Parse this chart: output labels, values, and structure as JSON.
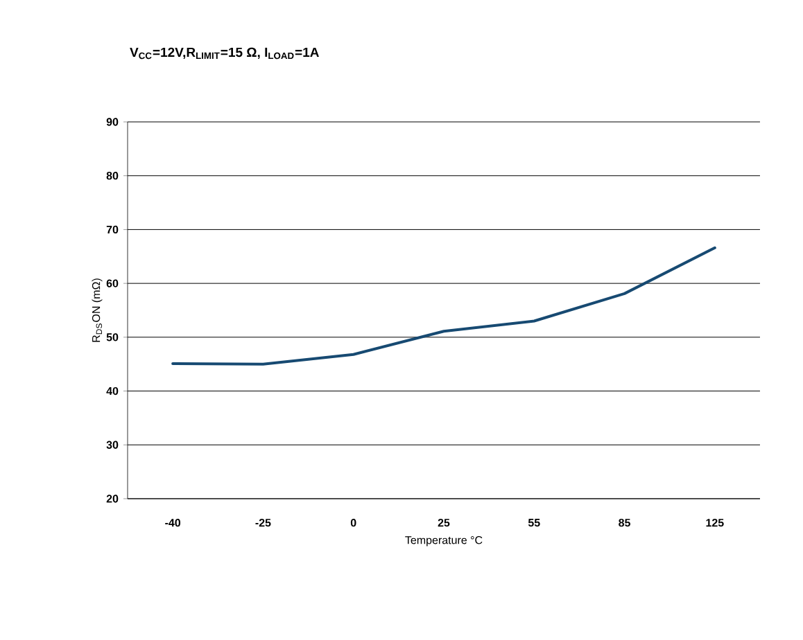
{
  "chart_data": {
    "type": "line",
    "title": "V$_{CC}$=12V,R$_{LIMIT}$=15 Ω, I$_{LOAD}$=1A",
    "xlabel": "Temperature °C",
    "ylabel": "R$_{DS}$ON (mΩ)",
    "categories": [
      "-40",
      "-25",
      "0",
      "25",
      "55",
      "85",
      "125"
    ],
    "series": [
      {
        "color": "#174a72",
        "values": [
          45.1,
          45.0,
          46.8,
          51.1,
          53.0,
          58.1,
          66.6
        ]
      }
    ],
    "ylim": [
      20,
      90
    ],
    "yticks": [
      20,
      30,
      40,
      50,
      60,
      70,
      80,
      90
    ],
    "grid": "y",
    "marker": "none",
    "line_style": "solid"
  }
}
